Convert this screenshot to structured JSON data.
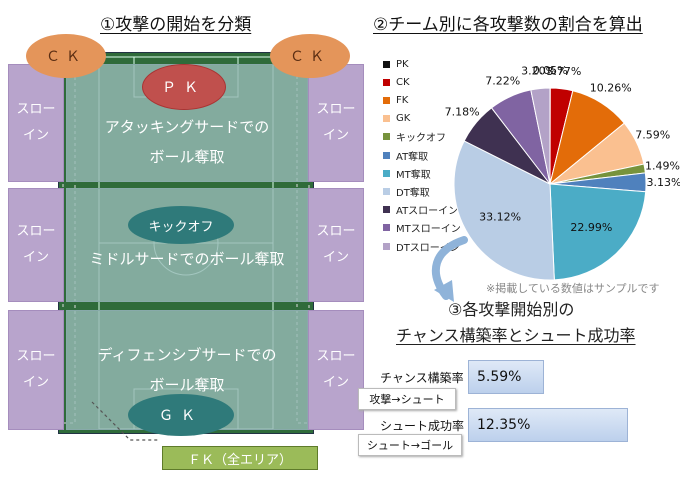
{
  "left_title": "①攻撃の開始を分類",
  "right_title": "②チーム別に各攻撃数の割合を算出",
  "zones": {
    "attack": "アタッキングサードでの\nボール奪取",
    "middle": "ミドルサードでのボール奪取",
    "defense": "ディフェンシブサードでの\nボール奪取"
  },
  "throw_in": "スロー\nイン",
  "ovals": {
    "ck_left": "ＣＫ",
    "ck_right": "ＣＫ",
    "pk": "ＰＫ",
    "kickoff": "キックオフ",
    "gk": "ＧＫ"
  },
  "fk_box": "ＦＫ（全エリア）",
  "chart_data": {
    "type": "pie",
    "categories": [
      "PK",
      "CK",
      "FK",
      "GK",
      "キックオフ",
      "AT奪取",
      "MT奪取",
      "DT奪取",
      "ATスローイン",
      "MTスローイン",
      "DTスローイン"
    ],
    "values": [
      0.05,
      3.77,
      10.26,
      7.59,
      1.49,
      3.13,
      22.99,
      33.12,
      7.18,
      7.22,
      3.2
    ],
    "labels": [
      "0.05%",
      "3.77%",
      "10.26%",
      "7.59%",
      "1.49%",
      "3.13%",
      "22.99%",
      "33.12%",
      "7.18%",
      "7.22%",
      "3.20%"
    ],
    "colors": [
      "#111111",
      "#c00000",
      "#e36c09",
      "#fac090",
      "#77933c",
      "#4f81bd",
      "#4bacc6",
      "#b9cde5",
      "#3f3151",
      "#8064a2",
      "#b3a2c7"
    ],
    "legend_position": "left",
    "note": "※掲載している数値はサンプルです"
  },
  "section3_title": "③各攻撃開始別の",
  "section3_subtitle": "チャンス構築率とシュート成功率",
  "stats": [
    {
      "label": "チャンス構築率",
      "value": "5.59%",
      "sub": "攻撃→シュート"
    },
    {
      "label": "シュート成功率",
      "value": "12.35%",
      "sub": "シュート→ゴール"
    }
  ]
}
